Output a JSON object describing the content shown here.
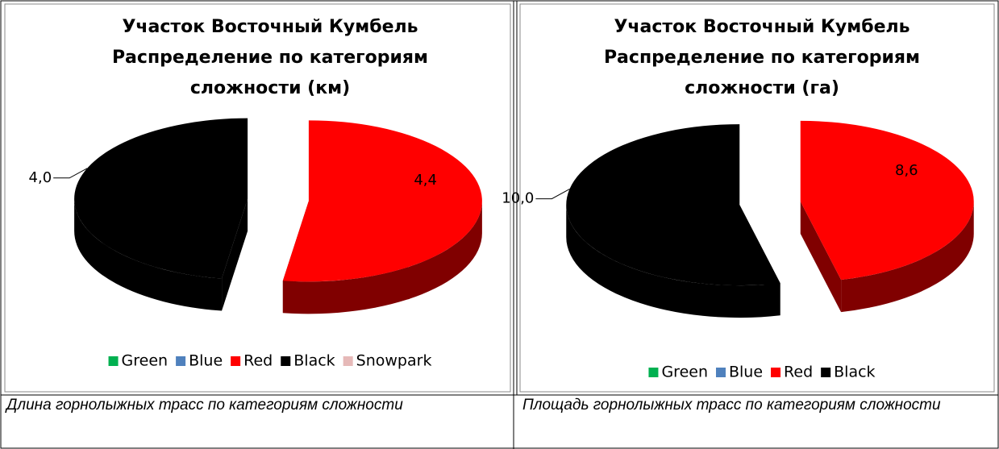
{
  "chart_data": [
    {
      "type": "pie",
      "title": [
        "Участок Восточный Кумбель",
        "Распределение по категориям",
        "сложности (км)"
      ],
      "categories": [
        "Green",
        "Blue",
        "Red",
        "Black",
        "Snowpark"
      ],
      "values": [
        0,
        0,
        4.4,
        4.0,
        0
      ],
      "value_labels": [
        null,
        null,
        "4,4",
        "4,0",
        null
      ],
      "colors": [
        "#00b050",
        "#4f81bd",
        "#ff0000",
        "#000000",
        "#e6b9b8"
      ],
      "legend": "bottom",
      "exploded": true,
      "three_d": true
    },
    {
      "type": "pie",
      "title": [
        "Участок Восточный Кумбель",
        "Распределение по категориям",
        "сложности (га)"
      ],
      "categories": [
        "Green",
        "Blue",
        "Red",
        "Black"
      ],
      "values": [
        0,
        0,
        8.6,
        10.0
      ],
      "value_labels": [
        null,
        null,
        "8,6",
        "10,0"
      ],
      "colors": [
        "#00b050",
        "#4f81bd",
        "#ff0000",
        "#000000"
      ],
      "legend": "bottom",
      "exploded": true,
      "three_d": true
    }
  ],
  "captions": [
    "Длина горнолыжных трасс по категориям сложности",
    "Площадь горнолыжных трасс по категориям сложности"
  ]
}
